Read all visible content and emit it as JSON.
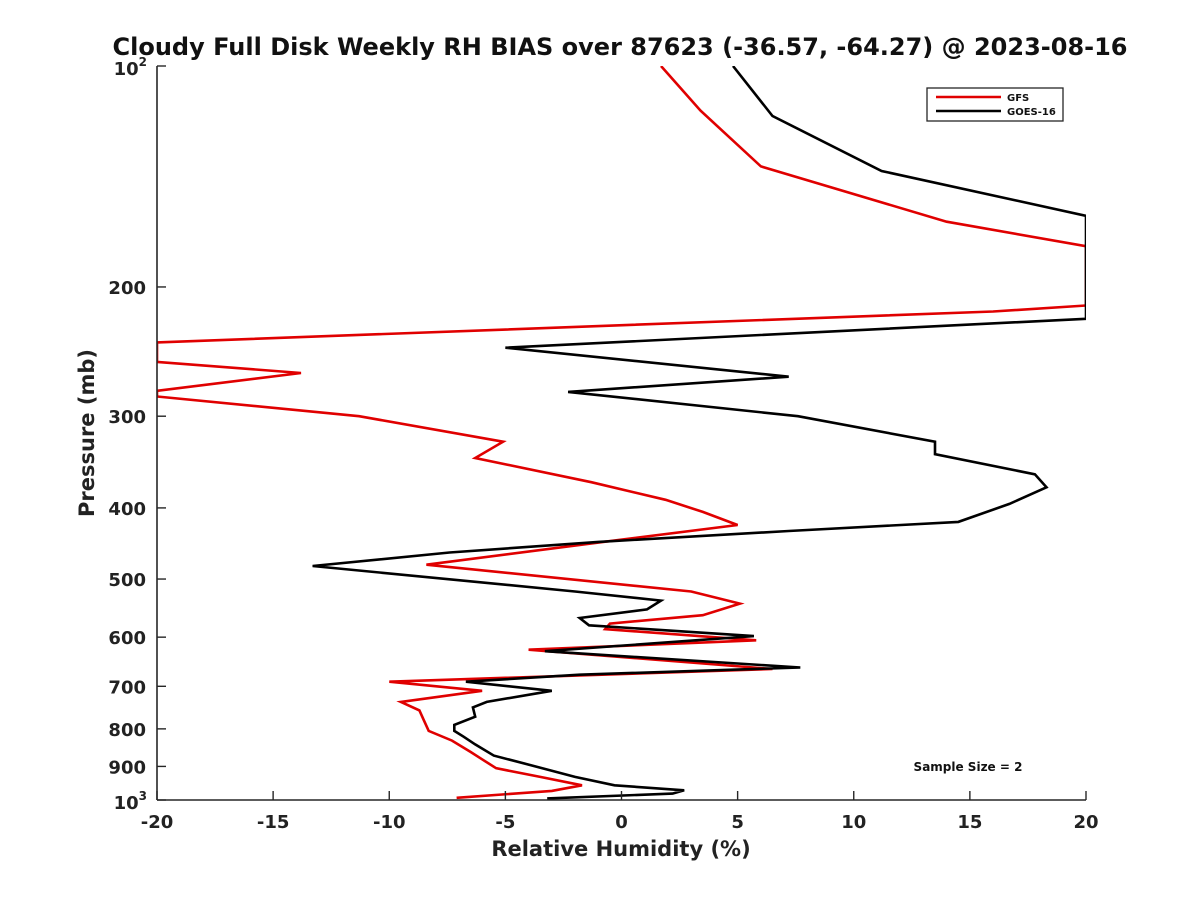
{
  "chart_data": {
    "type": "line",
    "title": "Cloudy Full Disk Weekly RH BIAS over 87623 (-36.57, -64.27) @ 2023-08-16",
    "xlabel": "Relative Humidity (%)",
    "ylabel": "Pressure (mb)",
    "xlim": [
      -20,
      20
    ],
    "ylim": [
      100,
      1000
    ],
    "y_scale": "log",
    "y_reversed": true,
    "grid": false,
    "legend_position": "top-right",
    "x_ticks": [
      -20,
      -15,
      -10,
      -5,
      0,
      5,
      10,
      15,
      20
    ],
    "x_tick_labels": [
      "-20",
      "-15",
      "-10",
      "-5",
      "0",
      "5",
      "10",
      "15",
      "20"
    ],
    "y_ticks": [
      {
        "value": 100,
        "base": "10",
        "exp": "2"
      },
      {
        "value": 200,
        "label": "200"
      },
      {
        "value": 300,
        "label": "300"
      },
      {
        "value": 400,
        "label": "400"
      },
      {
        "value": 500,
        "label": "500"
      },
      {
        "value": 600,
        "label": "600"
      },
      {
        "value": 700,
        "label": "700"
      },
      {
        "value": 800,
        "label": "800"
      },
      {
        "value": 900,
        "label": "900"
      },
      {
        "value": 1000,
        "base": "10",
        "exp": "3"
      }
    ],
    "series": [
      {
        "name": "GFS",
        "color": "#e00000",
        "points": [
          [
            1.7,
            100
          ],
          [
            3.4,
            115
          ],
          [
            6.0,
            137
          ],
          [
            14.0,
            163
          ],
          [
            20.0,
            176
          ],
          [
            20.0,
            212
          ],
          [
            16.0,
            216
          ],
          [
            -20.0,
            238
          ],
          [
            -20.0,
            253
          ],
          [
            -13.8,
            262
          ],
          [
            -20.0,
            277
          ],
          [
            -20.0,
            282
          ],
          [
            -11.3,
            300
          ],
          [
            -5.1,
            325
          ],
          [
            -6.3,
            342
          ],
          [
            -1.3,
            369
          ],
          [
            1.9,
            390
          ],
          [
            3.5,
            405
          ],
          [
            5.0,
            422
          ],
          [
            -1.0,
            446
          ],
          [
            -8.4,
            478
          ],
          [
            3.0,
            520
          ],
          [
            5.1,
            540
          ],
          [
            3.5,
            560
          ],
          [
            -0.5,
            575
          ],
          [
            -0.7,
            585
          ],
          [
            5.8,
            606
          ],
          [
            -4.0,
            624
          ],
          [
            6.5,
            663
          ],
          [
            -10.0,
            690
          ],
          [
            -6.0,
            710
          ],
          [
            -9.5,
            735
          ],
          [
            -8.7,
            755
          ],
          [
            -8.5,
            780
          ],
          [
            -8.3,
            805
          ],
          [
            -7.3,
            830
          ],
          [
            -6.5,
            860
          ],
          [
            -6.0,
            880
          ],
          [
            -5.4,
            905
          ],
          [
            -3.5,
            930
          ],
          [
            -1.7,
            955
          ],
          [
            -3.0,
            972
          ],
          [
            -7.1,
            993
          ]
        ]
      },
      {
        "name": "GOES-16",
        "color": "#000000",
        "points": [
          [
            4.8,
            100
          ],
          [
            6.5,
            117
          ],
          [
            11.2,
            139
          ],
          [
            20.0,
            160
          ],
          [
            20.0,
            221
          ],
          [
            -5.0,
            242
          ],
          [
            7.2,
            265
          ],
          [
            -2.3,
            278
          ],
          [
            7.6,
            300
          ],
          [
            13.5,
            325
          ],
          [
            13.5,
            338
          ],
          [
            17.8,
            360
          ],
          [
            18.3,
            375
          ],
          [
            16.7,
            395
          ],
          [
            14.5,
            418
          ],
          [
            7.2,
            430
          ],
          [
            -1.0,
            445
          ],
          [
            -7.4,
            460
          ],
          [
            -13.3,
            480
          ],
          [
            -2.0,
            520
          ],
          [
            1.7,
            535
          ],
          [
            1.1,
            550
          ],
          [
            -1.8,
            565
          ],
          [
            -1.4,
            578
          ],
          [
            5.7,
            598
          ],
          [
            -3.3,
            627
          ],
          [
            7.7,
            660
          ],
          [
            -1.8,
            675
          ],
          [
            -6.7,
            690
          ],
          [
            -3.0,
            710
          ],
          [
            -5.8,
            735
          ],
          [
            -6.4,
            748
          ],
          [
            -6.3,
            770
          ],
          [
            -7.2,
            790
          ],
          [
            -7.2,
            805
          ],
          [
            -6.8,
            820
          ],
          [
            -6.3,
            840
          ],
          [
            -5.5,
            870
          ],
          [
            -4.0,
            895
          ],
          [
            -2.0,
            930
          ],
          [
            -0.3,
            955
          ],
          [
            2.7,
            970
          ],
          [
            2.2,
            980
          ],
          [
            -3.2,
            995
          ]
        ]
      }
    ],
    "annotation": "Sample Size = 2"
  }
}
